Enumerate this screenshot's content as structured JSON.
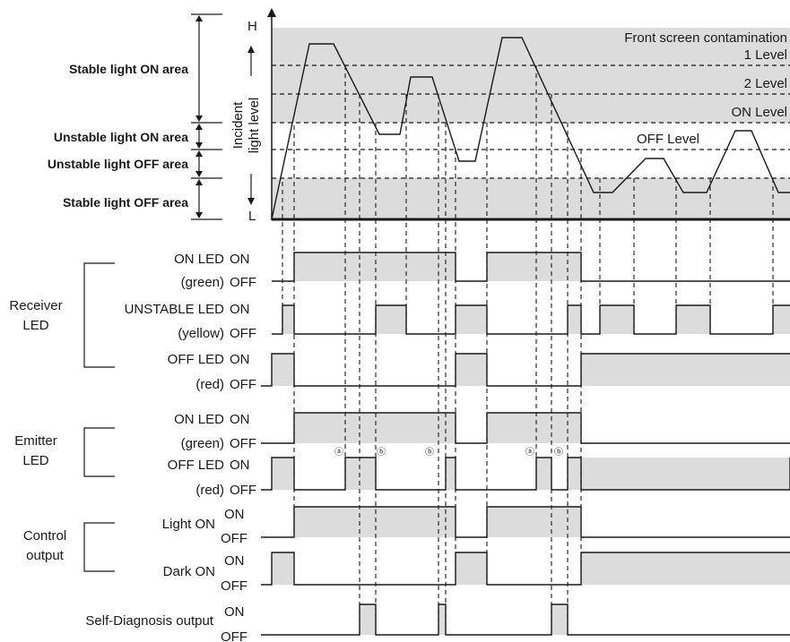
{
  "colors": {
    "band": "#dcdcdc",
    "line": "#1a1a1a"
  },
  "top_graph": {
    "axis_high": "H",
    "axis_low": "L",
    "axis_label_line1": "Incident",
    "axis_label_line2": "light level",
    "front_screen_label": "Front screen contamination",
    "levels": [
      "1 Level",
      "2 Level",
      "ON Level",
      "OFF Level"
    ],
    "areas": [
      "Stable light ON area",
      "Unstable light ON area",
      "Unstable light OFF area",
      "Stable light OFF area"
    ]
  },
  "receiver": {
    "group_line1": "Receiver",
    "group_line2": "LED",
    "on_led_line1": "ON LED",
    "on_led_line2": "(green)",
    "unstable_led_line1": "UNSTABLE LED",
    "unstable_led_line2": "(yellow)",
    "off_led_line1": "OFF LED",
    "off_led_line2": "(red)"
  },
  "emitter": {
    "group_line1": "Emitter",
    "group_line2": "LED",
    "on_led_line1": "ON LED",
    "on_led_line2": "(green)",
    "off_led_line1": "OFF LED",
    "off_led_line2": "(red)"
  },
  "control": {
    "group_line1": "Control",
    "group_line2": "output",
    "light_on": "Light ON",
    "dark_on": "Dark ON"
  },
  "self_diagnosis": {
    "label": "Self-Diagnosis output"
  },
  "state_on": "ON",
  "state_off": "OFF",
  "marker_a": "ⓐ",
  "marker_b": "ⓑ"
}
